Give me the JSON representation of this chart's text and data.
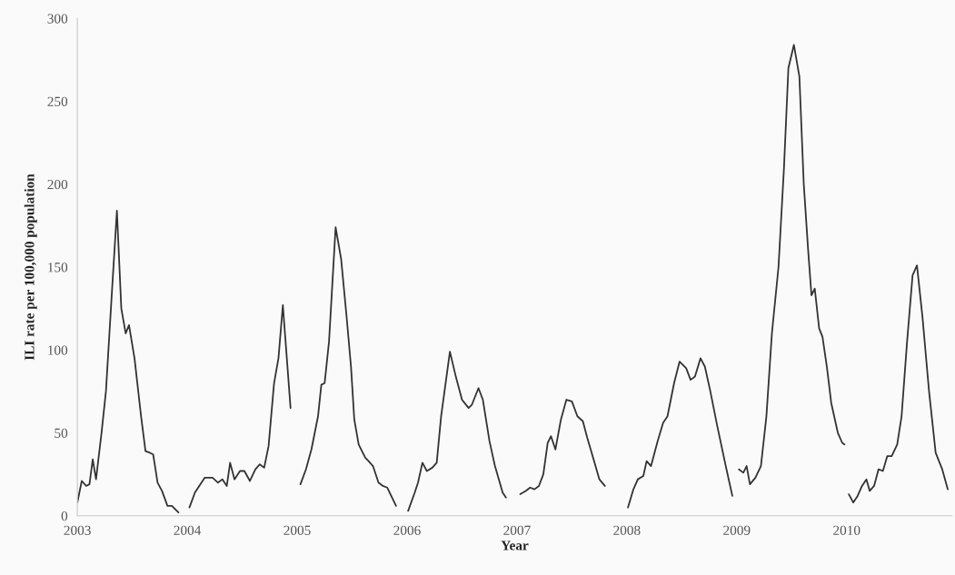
{
  "chart_data": {
    "type": "line",
    "xlabel": "Year",
    "ylabel": "ILI rate per 100,000 population",
    "xlim": [
      2003,
      2010.96
    ],
    "xticks": [
      2003,
      2004,
      2005,
      2006,
      2007,
      2008,
      2009,
      2010
    ],
    "ylim": [
      0,
      300
    ],
    "yticks": [
      0,
      50,
      100,
      150,
      200,
      250,
      300
    ],
    "grid": false,
    "marker": "none",
    "line_style": "solid",
    "series": [
      {
        "color": "#333333",
        "x": [
          2003.0,
          2003.04,
          2003.08,
          2003.11,
          2003.14,
          2003.17,
          2003.22,
          2003.26,
          2003.31,
          2003.36,
          2003.4,
          2003.44,
          2003.47,
          2003.52,
          2003.58,
          2003.62,
          2003.66,
          2003.69,
          2003.73,
          2003.77,
          2003.82,
          2003.86,
          2003.92,
          2003.97,
          2004.02,
          2004.07,
          2004.12,
          2004.16,
          2004.23,
          2004.28,
          2004.32,
          2004.36,
          2004.39,
          2004.43,
          2004.48,
          2004.52,
          2004.57,
          2004.62,
          2004.66,
          2004.7,
          2004.74,
          2004.79,
          2004.83,
          2004.87,
          2004.94,
          2004.98,
          2005.03,
          2005.08,
          2005.13,
          2005.19,
          2005.22,
          2005.25,
          2005.29,
          2005.35,
          2005.4,
          2005.45,
          2005.49,
          2005.52,
          2005.56,
          2005.62,
          2005.65,
          2005.69,
          2005.74,
          2005.78,
          2005.82,
          2005.9,
          2005.95,
          2006.01,
          2006.07,
          2006.1,
          2006.14,
          2006.18,
          2006.23,
          2006.27,
          2006.31,
          2006.39,
          2006.44,
          2006.5,
          2006.56,
          2006.59,
          2006.65,
          2006.69,
          2006.75,
          2006.8,
          2006.87,
          2006.9,
          2006.96,
          2007.03,
          2007.08,
          2007.12,
          2007.16,
          2007.2,
          2007.24,
          2007.28,
          2007.31,
          2007.35,
          2007.4,
          2007.45,
          2007.5,
          2007.55,
          2007.6,
          2007.64,
          2007.68,
          2007.75,
          2007.8,
          2007.9,
          2008.01,
          2008.06,
          2008.1,
          2008.15,
          2008.18,
          2008.22,
          2008.28,
          2008.33,
          2008.37,
          2008.43,
          2008.48,
          2008.54,
          2008.58,
          2008.62,
          2008.67,
          2008.71,
          2008.76,
          2008.82,
          2008.9,
          2008.96,
          2008.99,
          2009.02,
          2009.06,
          2009.09,
          2009.12,
          2009.17,
          2009.22,
          2009.27,
          2009.32,
          2009.38,
          2009.43,
          2009.47,
          2009.52,
          2009.57,
          2009.61,
          2009.65,
          2009.68,
          2009.71,
          2009.75,
          2009.78,
          2009.82,
          2009.86,
          2009.92,
          2009.96,
          2009.98,
          2010.0,
          2010.02,
          2010.06,
          2010.1,
          2010.14,
          2010.18,
          2010.21,
          2010.25,
          2010.29,
          2010.33,
          2010.37,
          2010.41,
          2010.46,
          2010.5,
          2010.55,
          2010.6,
          2010.64,
          2010.69,
          2010.75,
          2010.81,
          2010.87,
          2010.92
        ],
        "values": [
          8,
          21,
          18,
          19,
          34,
          22,
          50,
          75,
          130,
          184,
          125,
          110,
          115,
          95,
          60,
          39,
          38,
          37,
          20,
          15,
          6,
          6,
          2,
          null,
          5,
          14,
          19,
          23,
          23,
          20,
          22,
          18,
          32,
          22,
          27,
          27,
          21,
          28,
          31,
          29,
          42,
          80,
          95,
          127,
          65,
          null,
          19,
          28,
          40,
          60,
          79,
          80,
          105,
          174,
          155,
          120,
          90,
          58,
          43,
          35,
          33,
          30,
          20,
          18,
          17,
          6,
          null,
          3,
          14,
          20,
          32,
          27,
          29,
          32,
          60,
          99,
          85,
          70,
          65,
          67,
          77,
          70,
          45,
          30,
          14,
          11,
          null,
          13,
          15,
          17,
          16,
          18,
          25,
          44,
          48,
          40,
          58,
          70,
          69,
          60,
          57,
          47,
          38,
          22,
          18,
          null,
          5,
          16,
          22,
          24,
          33,
          30,
          45,
          56,
          60,
          80,
          93,
          89,
          82,
          84,
          95,
          90,
          75,
          55,
          30,
          12,
          null,
          28,
          26,
          30,
          19,
          23,
          30,
          60,
          110,
          150,
          210,
          270,
          284,
          265,
          200,
          160,
          133,
          137,
          113,
          108,
          90,
          68,
          50,
          44,
          43,
          null,
          13,
          8,
          12,
          18,
          22,
          15,
          18,
          28,
          27,
          36,
          36,
          43,
          60,
          105,
          145,
          151,
          120,
          75,
          38,
          28,
          16
        ]
      }
    ]
  }
}
